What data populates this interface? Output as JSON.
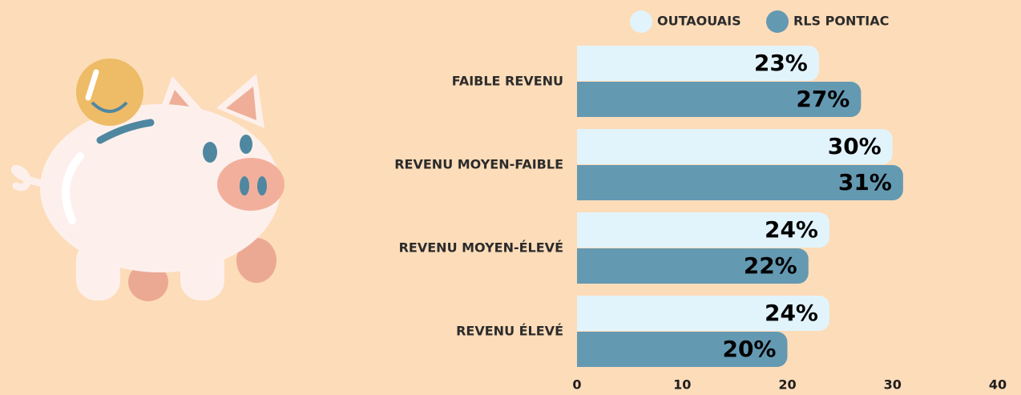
{
  "chart_data": {
    "type": "bar",
    "orientation": "horizontal",
    "categories": [
      "FAIBLE REVENU",
      "REVENU MOYEN-FAIBLE",
      "REVENU MOYEN-ÉLEVÉ",
      "REVENU ÉLEVÉ"
    ],
    "series": [
      {
        "name": "OUTAOUAIS",
        "color": "#e2f4fb",
        "values": [
          23,
          30,
          24,
          24
        ],
        "value_labels": [
          "23%",
          "30%",
          "24%",
          "24%"
        ]
      },
      {
        "name": "RLS PONTIAC",
        "color": "#6499b2",
        "values": [
          27,
          31,
          22,
          20
        ],
        "value_labels": [
          "27%",
          "31%",
          "22%",
          "20%"
        ]
      }
    ],
    "xlim": [
      0,
      40
    ],
    "xticks": [
      0,
      10,
      20,
      30,
      40
    ],
    "legend": "top"
  }
}
